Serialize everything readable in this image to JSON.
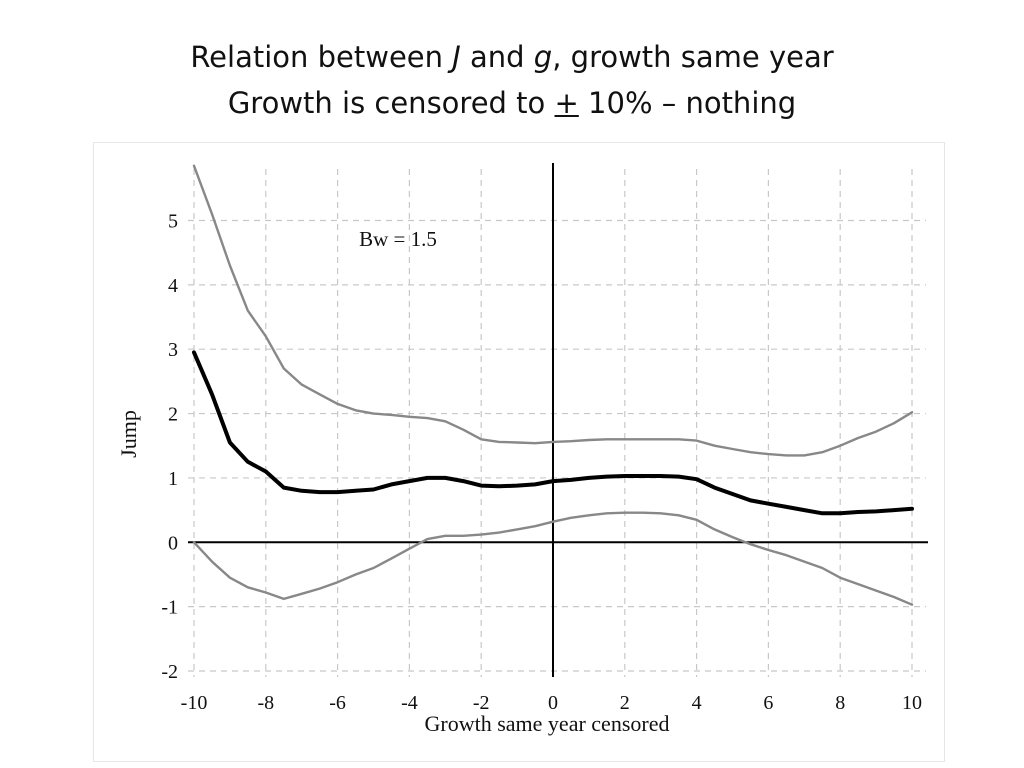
{
  "slide": {
    "title_line1": {
      "part1": "Relation between ",
      "var1": "J",
      "part2": " and ",
      "var2": "g",
      "part3": ", growth same year"
    },
    "title_line2": {
      "part1": "Growth is censored to ",
      "plusminus": "+",
      "part2": " 10% – nothing"
    }
  },
  "chart_data": {
    "type": "line",
    "xlabel": "Growth same year censored",
    "ylabel": "Jump",
    "xlim": [
      -10,
      10
    ],
    "ylim": [
      -2,
      5.8
    ],
    "xticks": [
      -10,
      -8,
      -6,
      -4,
      -2,
      0,
      2,
      4,
      6,
      8,
      10
    ],
    "yticks": [
      -2,
      -1,
      0,
      1,
      2,
      3,
      4,
      5
    ],
    "grid": true,
    "grid_style": "dashed",
    "reference_lines": {
      "x": 0,
      "y": 0
    },
    "annotation": {
      "text": "Bw = 1.5",
      "x": -5.4,
      "y": 4.6
    },
    "colors": {
      "estimate": "#000000",
      "bands": "#888888",
      "grid": "#c8c8c8",
      "reference": "#000000"
    },
    "series": [
      {
        "role": "upper-band",
        "x": [
          -10,
          -9.5,
          -9,
          -8.5,
          -8,
          -7.5,
          -7,
          -6.5,
          -6,
          -5.5,
          -5,
          -4.5,
          -4,
          -3.5,
          -3,
          -2.5,
          -2,
          -1.5,
          -1,
          -0.5,
          0,
          0.5,
          1,
          1.5,
          2,
          2.5,
          3,
          3.5,
          4,
          4.5,
          5,
          5.5,
          6,
          6.5,
          7,
          7.5,
          8,
          8.5,
          9,
          9.5,
          10
        ],
        "y": [
          5.85,
          5.1,
          4.3,
          3.6,
          3.2,
          2.7,
          2.45,
          2.3,
          2.15,
          2.05,
          2.0,
          1.98,
          1.95,
          1.93,
          1.88,
          1.75,
          1.6,
          1.56,
          1.55,
          1.54,
          1.56,
          1.57,
          1.59,
          1.6,
          1.6,
          1.6,
          1.6,
          1.6,
          1.58,
          1.5,
          1.45,
          1.4,
          1.37,
          1.35,
          1.35,
          1.4,
          1.5,
          1.62,
          1.72,
          1.85,
          2.02
        ]
      },
      {
        "role": "estimate",
        "x": [
          -10,
          -9.5,
          -9,
          -8.5,
          -8,
          -7.5,
          -7,
          -6.5,
          -6,
          -5.5,
          -5,
          -4.5,
          -4,
          -3.5,
          -3,
          -2.5,
          -2,
          -1.5,
          -1,
          -0.5,
          0,
          0.5,
          1,
          1.5,
          2,
          2.5,
          3,
          3.5,
          4,
          4.5,
          5,
          5.5,
          6,
          6.5,
          7,
          7.5,
          8,
          8.5,
          9,
          9.5,
          10
        ],
        "y": [
          2.95,
          2.3,
          1.55,
          1.25,
          1.1,
          0.85,
          0.8,
          0.78,
          0.78,
          0.8,
          0.82,
          0.9,
          0.95,
          1.0,
          1.0,
          0.95,
          0.88,
          0.87,
          0.88,
          0.9,
          0.95,
          0.97,
          1.0,
          1.02,
          1.03,
          1.03,
          1.03,
          1.02,
          0.98,
          0.85,
          0.75,
          0.65,
          0.6,
          0.55,
          0.5,
          0.45,
          0.45,
          0.47,
          0.48,
          0.5,
          0.52
        ]
      },
      {
        "role": "lower-band",
        "x": [
          -10,
          -9.5,
          -9,
          -8.5,
          -8,
          -7.5,
          -7,
          -6.5,
          -6,
          -5.5,
          -5,
          -4.5,
          -4,
          -3.5,
          -3,
          -2.5,
          -2,
          -1.5,
          -1,
          -0.5,
          0,
          0.5,
          1,
          1.5,
          2,
          2.5,
          3,
          3.5,
          4,
          4.5,
          5,
          5.5,
          6,
          6.5,
          7,
          7.5,
          8,
          8.5,
          9,
          9.5,
          10
        ],
        "y": [
          0.0,
          -0.3,
          -0.55,
          -0.7,
          -0.78,
          -0.88,
          -0.8,
          -0.72,
          -0.62,
          -0.5,
          -0.4,
          -0.25,
          -0.1,
          0.05,
          0.1,
          0.1,
          0.12,
          0.15,
          0.2,
          0.25,
          0.32,
          0.38,
          0.42,
          0.45,
          0.46,
          0.46,
          0.45,
          0.42,
          0.35,
          0.2,
          0.08,
          -0.03,
          -0.12,
          -0.2,
          -0.3,
          -0.4,
          -0.55,
          -0.65,
          -0.75,
          -0.85,
          -0.97
        ]
      }
    ]
  }
}
